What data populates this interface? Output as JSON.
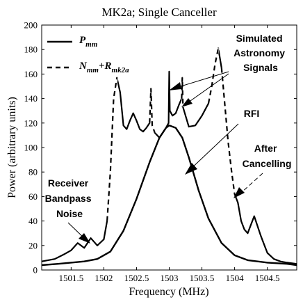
{
  "chart_data": {
    "type": "line",
    "title": "MK2a; Single Canceller",
    "xlabel": "Frequency (MHz)",
    "ylabel": "Power (arbitrary units)",
    "xlim": [
      1501.05,
      1504.95
    ],
    "ylim": [
      0,
      200
    ],
    "x_ticks": [
      1501.5,
      1502,
      1502.5,
      1503,
      1503.5,
      1504,
      1504.5
    ],
    "x_tick_labels": [
      "1501.5",
      "1502",
      "1502.5",
      "1503",
      "1503.5",
      "1504",
      "1504.5"
    ],
    "y_ticks": [
      0,
      20,
      40,
      60,
      80,
      100,
      120,
      140,
      160,
      180,
      200
    ],
    "y_tick_labels": [
      "0",
      "20",
      "40",
      "60",
      "80",
      "100",
      "120",
      "140",
      "160",
      "180",
      "200"
    ],
    "grid": false,
    "legend": {
      "placement": "top-left",
      "entries": [
        {
          "main": "P",
          "sub": "mm",
          "style": "solid"
        },
        {
          "main": "N",
          "sub": "mm",
          "plus": "+R",
          "sub2": "mk2a",
          "style": "dashed"
        }
      ]
    },
    "annotations": [
      {
        "lines": [
          "Simulated",
          "Astronomy",
          "Signals"
        ]
      },
      {
        "lines": [
          "RFI"
        ]
      },
      {
        "lines": [
          "After",
          "Cancelling"
        ]
      },
      {
        "lines": [
          "Receiver",
          "Bandpass",
          "Noise"
        ]
      }
    ],
    "series": [
      {
        "name": "P_mm",
        "style": "solid",
        "x": [
          1501.05,
          1501.3,
          1501.5,
          1501.7,
          1501.9,
          1502.1,
          1502.3,
          1502.5,
          1502.7,
          1502.85,
          1502.95,
          1503.0,
          1503.1,
          1503.2,
          1503.3,
          1503.45,
          1503.6,
          1503.8,
          1504.0,
          1504.2,
          1504.5,
          1504.8,
          1504.95
        ],
        "y": [
          4,
          5,
          6,
          7,
          9,
          15,
          32,
          58,
          88,
          108,
          116,
          118,
          116,
          108,
          92,
          65,
          42,
          22,
          12,
          8,
          6,
          5,
          4
        ]
      },
      {
        "name": "N_mm+R_mk2a",
        "style": "mixed",
        "x": [
          1501.05,
          1501.25,
          1501.4,
          1501.5,
          1501.6,
          1501.7,
          1501.8,
          1501.9,
          1502.0,
          1502.05,
          1502.1,
          1502.15,
          1502.2,
          1502.25,
          1502.3,
          1502.35,
          1502.4,
          1502.45,
          1502.5,
          1502.55,
          1502.6,
          1502.65,
          1502.7,
          1502.72,
          1502.74,
          1502.78,
          1502.85,
          1502.9,
          1502.95,
          1502.99,
          1503.0,
          1503.01,
          1503.05,
          1503.1,
          1503.15,
          1503.19,
          1503.2,
          1503.21,
          1503.3,
          1503.4,
          1503.5,
          1503.6,
          1503.65,
          1503.7,
          1503.75,
          1503.8,
          1503.85,
          1503.9,
          1503.95,
          1504.0,
          1504.05,
          1504.1,
          1504.15,
          1504.2,
          1504.3,
          1504.4,
          1504.5,
          1504.6,
          1504.7,
          1504.8,
          1504.95
        ],
        "y": [
          7,
          9,
          13,
          16,
          22,
          18,
          26,
          20,
          25,
          40,
          80,
          140,
          157,
          145,
          118,
          115,
          122,
          128,
          122,
          115,
          113,
          116,
          120,
          148,
          118,
          112,
          108,
          112,
          116,
          120,
          162,
          130,
          126,
          128,
          135,
          140,
          157,
          133,
          117,
          118,
          126,
          136,
          150,
          168,
          181,
          165,
          135,
          105,
          82,
          62,
          55,
          40,
          33,
          30,
          44,
          28,
          14,
          9,
          7,
          6,
          5
        ]
      }
    ]
  }
}
